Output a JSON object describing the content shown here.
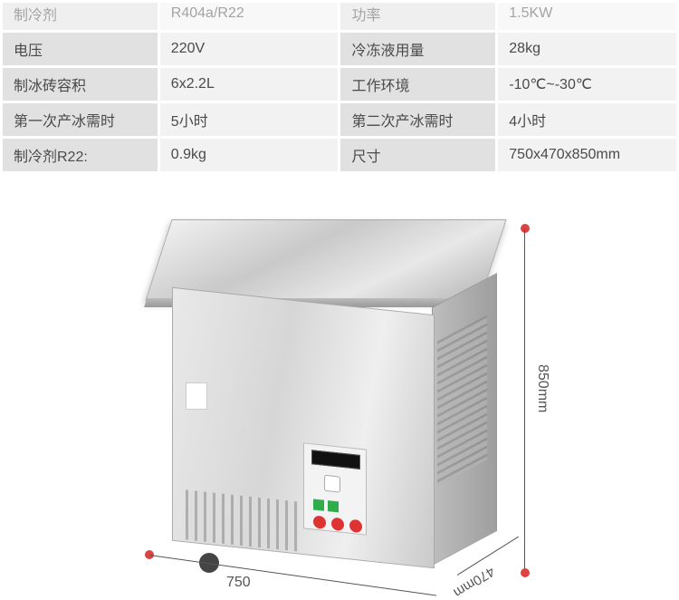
{
  "table": {
    "rows": [
      {
        "l1": "制冷剂",
        "v1": "R404a/R22",
        "l2": "功率",
        "v2": "1.5KW"
      },
      {
        "l1": "电压",
        "v1": "220V",
        "l2": "冷冻液用量",
        "v2": "28kg"
      },
      {
        "l1": "制冰砖容积",
        "v1": "6x2.2L",
        "l2": "工作环境",
        "v2": "-10℃~-30℃"
      },
      {
        "l1": "第一次产冰需时",
        "v1": "5小时",
        "l2": "第二次产冰需时",
        "v2": "4小时"
      },
      {
        "l1": "制冷剂R22:",
        "v1": "0.9kg",
        "l2": "尺寸",
        "v2": "750x470x850mm"
      }
    ]
  },
  "dimensions": {
    "height": "850mm",
    "depth": "470mm",
    "width": "750"
  },
  "colors": {
    "label_bg": "#e1e1e1",
    "value_bg": "#f2f2f2",
    "text": "#4a4a4a",
    "marker": "#d44444"
  }
}
